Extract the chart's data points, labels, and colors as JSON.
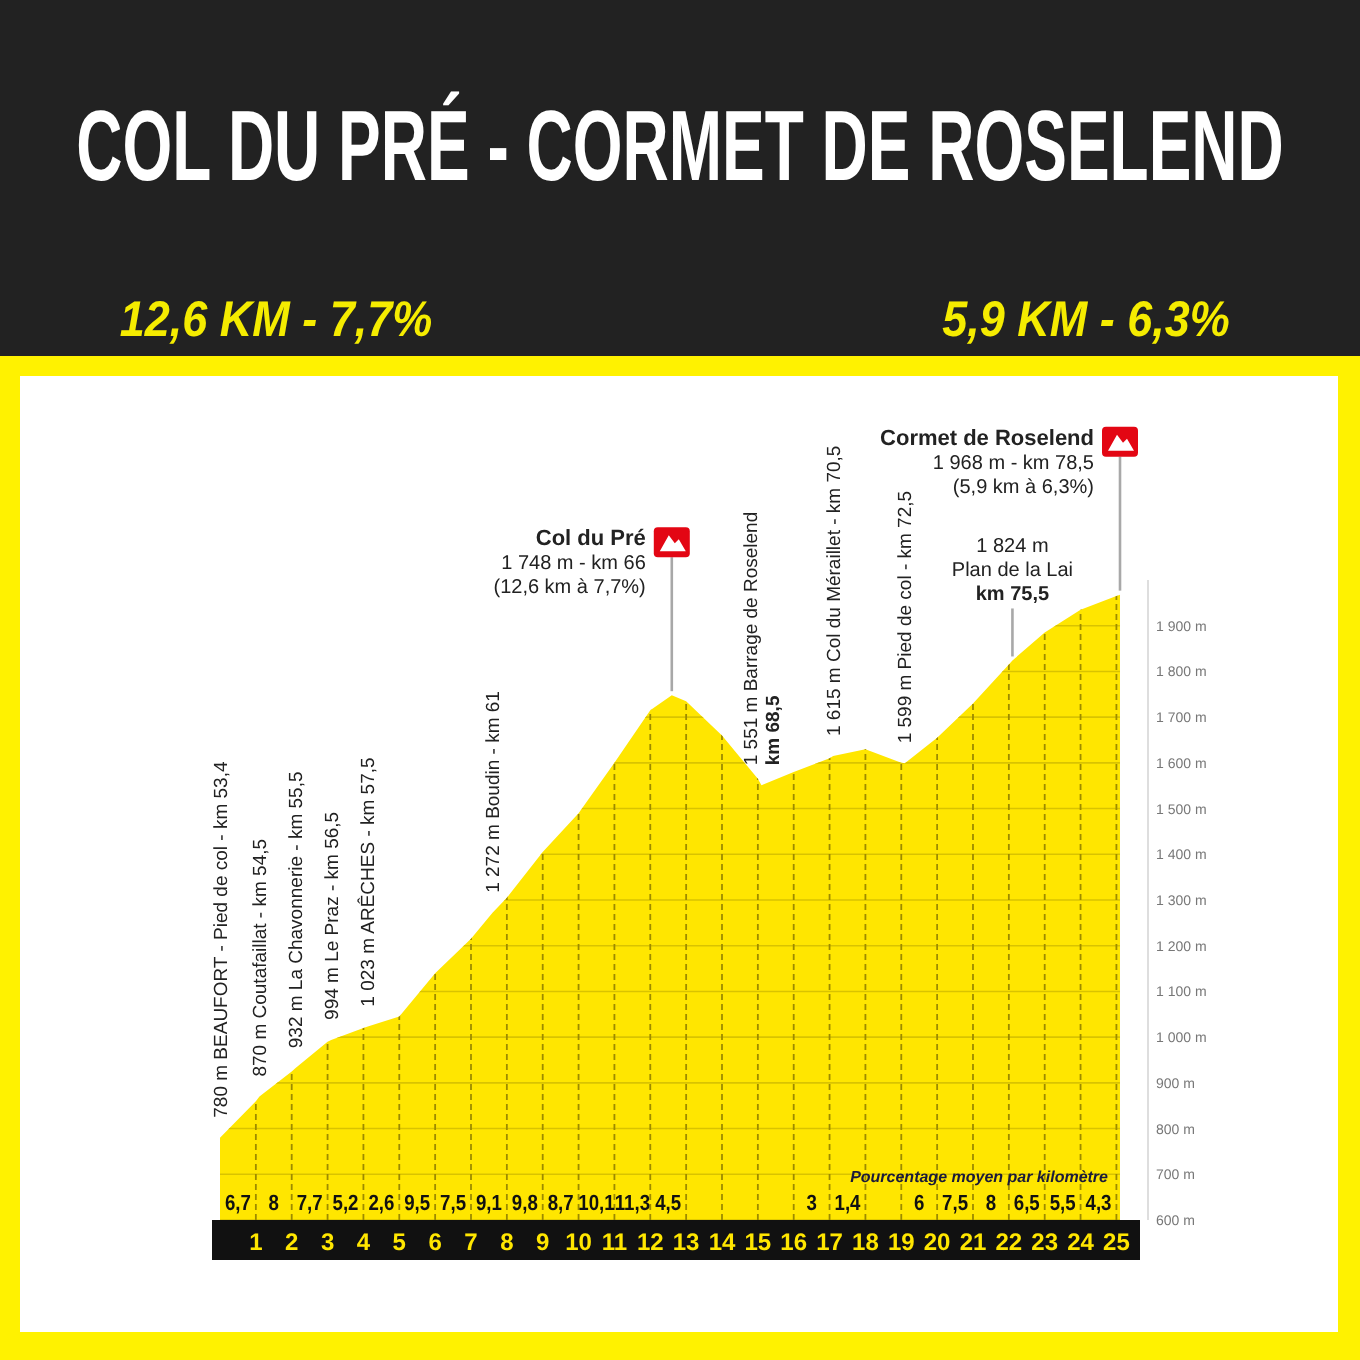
{
  "chart_data": {
    "type": "area",
    "title": "COL DU PRÉ - CORMET DE ROSELEND",
    "x": [
      0,
      1,
      1.1,
      2,
      2.1,
      3,
      3.1,
      4,
      4.1,
      5,
      6,
      7,
      7.6,
      8,
      9,
      10,
      11,
      12,
      12.6,
      13,
      14,
      15,
      15.1,
      16,
      17,
      17.1,
      18,
      19,
      19.1,
      20,
      21,
      22,
      22.1,
      23,
      24,
      25,
      25.1
    ],
    "series": [
      {
        "type": "area",
        "color": "#ffe600",
        "values": [
          780,
          860,
          870,
          925,
          932,
          990,
          994,
          1020,
          1023,
          1045,
          1140,
          1215,
          1272,
          1305,
          1405,
          1490,
          1600,
          1715,
          1748,
          1735,
          1660,
          1565,
          1551,
          1580,
          1610,
          1615,
          1630,
          1600,
          1599,
          1655,
          1730,
          1815,
          1824,
          1885,
          1935,
          1965,
          1968
        ]
      }
    ],
    "xlim": [
      0,
      25.1
    ],
    "xticks": [
      1,
      2,
      3,
      4,
      5,
      6,
      7,
      8,
      9,
      10,
      11,
      12,
      13,
      14,
      15,
      16,
      17,
      18,
      19,
      20,
      21,
      22,
      23,
      24,
      25
    ],
    "ylim": [
      600,
      2000
    ],
    "yticks": [
      {
        "value": 600,
        "label": "600 m"
      },
      {
        "value": 700,
        "label": "700 m"
      },
      {
        "value": 800,
        "label": "800 m"
      },
      {
        "value": 900,
        "label": "900 m"
      },
      {
        "value": 1000,
        "label": "1 000 m"
      },
      {
        "value": 1100,
        "label": "1 100 m"
      },
      {
        "value": 1200,
        "label": "1 200 m"
      },
      {
        "value": 1300,
        "label": "1 300 m"
      },
      {
        "value": 1400,
        "label": "1 400 m"
      },
      {
        "value": 1500,
        "label": "1 500 m"
      },
      {
        "value": 1600,
        "label": "1 600 m"
      },
      {
        "value": 1700,
        "label": "1 700 m"
      },
      {
        "value": 1800,
        "label": "1 800 m"
      },
      {
        "value": 1900,
        "label": "1 900 m"
      }
    ],
    "grid": true,
    "annotations": [
      "12,6 KM - 7,7%",
      "5,9 KM - 6,3%",
      "Pourcentage moyen par kilomètre",
      "6,7",
      "8",
      "7,7",
      "5,2",
      "2,6",
      "9,5",
      "7,5",
      "9,1",
      "9,8",
      "8,7",
      "10,1",
      "11,3",
      "4,5",
      "3",
      "1,4",
      "6",
      "7,5",
      "8",
      "6,5",
      "5,5",
      "4,3",
      {
        "text": "780 m BEAUFORT - Pied de col - km 53,4",
        "x": 0,
        "y": 780
      },
      {
        "text": "870 m Coutafaillat - km 54,5",
        "x": 1.1,
        "y": 870
      },
      {
        "text": "932 m La Chavonnerie - km 55,5",
        "x": 2.1,
        "y": 932
      },
      {
        "text": "994 m Le Praz - km 56,5",
        "x": 3.1,
        "y": 994
      },
      {
        "text": "1 023 m ARÊCHES - km 57,5",
        "x": 4.1,
        "y": 1023
      },
      {
        "text": "1 272 m Boudin - km 61",
        "x": 7.6,
        "y": 1272
      },
      {
        "text": "Col du Pré\n1 748 m - km 66\n(12,6 km à 7,7%)",
        "x": 12.6,
        "y": 1748
      },
      {
        "text": "1 551 m Barrage de Roselend\nkm 68,5",
        "x": 15.1,
        "y": 1551
      },
      {
        "text": "1 615 m Col du Méraillet - km 70,5",
        "x": 17.1,
        "y": 1615
      },
      {
        "text": "1 599 m Pied de col - km 72,5",
        "x": 19.1,
        "y": 1599
      },
      {
        "text": "1 824 m\nPlan de la Lai\nkm 75,5",
        "x": 22.1,
        "y": 1824
      },
      {
        "text": "Cormet de Roselend\n1 968 m - km 78,5\n(5,9 km à 6,3%)",
        "x": 25.1,
        "y": 1968
      }
    ]
  }
}
